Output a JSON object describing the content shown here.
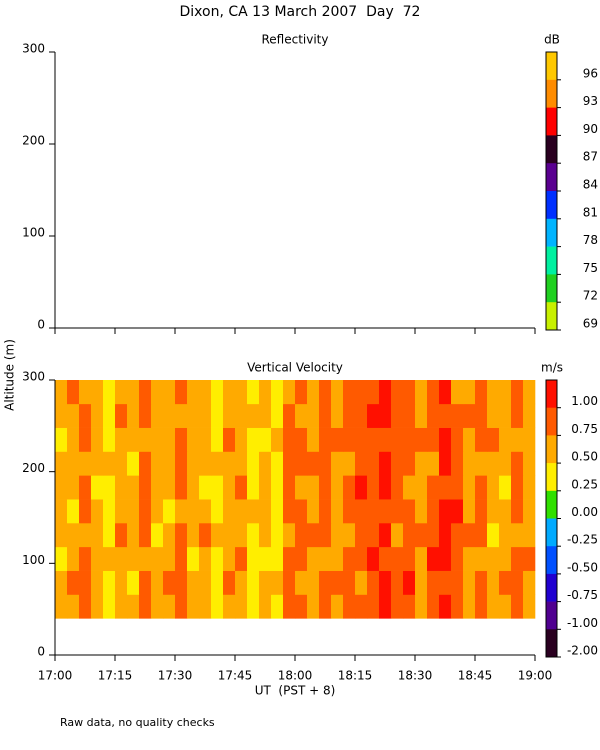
{
  "title": "Dixon, CA 13 March 2007  Day  72",
  "y_label": "Altitude (m)",
  "x_label": "UT  (PST + 8)",
  "note": "Raw data, no quality checks",
  "chart_data": [
    {
      "type": "heatmap",
      "title": "Reflectivity",
      "xlim": [
        17,
        19
      ],
      "xticks": [
        17,
        17.25,
        17.5,
        17.75,
        18,
        18.25,
        18.5,
        18.75,
        19
      ],
      "ylim": [
        0,
        300
      ],
      "yticks": [
        0,
        100,
        200,
        300
      ],
      "colorbar": {
        "unit": "dB",
        "ticks": [
          96,
          93,
          90,
          87,
          84,
          81,
          78,
          75,
          72,
          69
        ],
        "colors": [
          "#ffc800",
          "#ff8c00",
          "#ff0000",
          "#2a0020",
          "#5a0090",
          "#0030ff",
          "#00b4ff",
          "#00f0a0",
          "#20d020",
          "#c8f000"
        ]
      }
    },
    {
      "type": "heatmap",
      "title": "Vertical Velocity",
      "xlim": [
        17,
        19
      ],
      "xticks": [
        {
          "value": 17,
          "label": "17:00"
        },
        {
          "value": 17.25,
          "label": "17:15"
        },
        {
          "value": 17.5,
          "label": "17:30"
        },
        {
          "value": 17.75,
          "label": "17:45"
        },
        {
          "value": 18,
          "label": "18:00"
        },
        {
          "value": 18.25,
          "label": "18:15"
        },
        {
          "value": 18.5,
          "label": "18:30"
        },
        {
          "value": 18.75,
          "label": "18:45"
        },
        {
          "value": 19,
          "label": "19:00"
        }
      ],
      "ylim": [
        0,
        300
      ],
      "yticks": [
        0,
        100,
        200,
        300
      ],
      "colorbar": {
        "unit": "m/s",
        "ticks": [
          {
            "value": 1,
            "label": "1.00"
          },
          {
            "value": 0.75,
            "label": "0.75"
          },
          {
            "value": 0.5,
            "label": "0.50"
          },
          {
            "value": 0.25,
            "label": "0.25"
          },
          {
            "value": 0,
            "label": "0.00"
          },
          {
            "value": -0.25,
            "label": "-0.25"
          },
          {
            "value": -0.5,
            "label": "-0.50"
          },
          {
            "value": -0.75,
            "label": "-0.75"
          },
          {
            "value": -1,
            "label": "-1.00"
          },
          {
            "value": -2,
            "label": "-2.00"
          }
        ],
        "colors": [
          "#ff1000",
          "#ff5a00",
          "#ffaa00",
          "#ffee00",
          "#30e000",
          "#00aaff",
          "#0050ff",
          "#2000d0",
          "#500090",
          "#2a0020"
        ]
      },
      "x_edges": [
        17,
        17.05,
        17.1,
        17.15,
        17.2,
        17.25,
        17.3,
        17.35,
        17.4,
        17.45,
        17.5,
        17.55,
        17.6,
        17.65,
        17.7,
        17.75,
        17.8,
        17.85,
        17.9,
        17.95,
        18,
        18.05,
        18.1,
        18.15,
        18.2,
        18.25,
        18.3,
        18.35,
        18.4,
        18.45,
        18.5,
        18.55,
        18.6,
        18.65,
        18.7,
        18.75,
        18.8,
        18.85,
        18.9,
        18.95,
        19
      ],
      "y_edges": [
        40,
        66,
        92,
        118,
        144,
        170,
        196,
        222,
        248,
        274,
        300
      ],
      "z": [
        [
          0.6,
          0.6,
          0.85,
          0.6,
          0.4,
          0.6,
          0.6,
          0.85,
          0.6,
          0.6,
          0.85,
          0.6,
          0.6,
          0.4,
          0.6,
          0.6,
          0.4,
          0.6,
          0.4,
          0.85,
          0.85,
          0.6,
          0.85,
          0.6,
          0.85,
          0.85,
          0.85,
          1.1,
          0.85,
          0.85,
          0.6,
          0.85,
          1.1,
          0.85,
          0.6,
          0.85,
          0.6,
          0.6,
          0.85,
          0.6
        ],
        [
          0.6,
          0.85,
          0.85,
          0.6,
          0.4,
          0.6,
          0.4,
          0.85,
          0.6,
          0.85,
          0.85,
          0.6,
          0.6,
          0.4,
          0.85,
          0.6,
          0.4,
          0.6,
          0.6,
          0.85,
          0.6,
          0.6,
          0.85,
          0.85,
          0.85,
          0.6,
          0.85,
          1.1,
          0.85,
          1.1,
          0.6,
          0.85,
          0.85,
          0.85,
          0.6,
          0.85,
          0.6,
          0.85,
          0.85,
          0.6
        ],
        [
          0.4,
          0.6,
          0.85,
          0.6,
          0.6,
          0.6,
          0.6,
          0.6,
          0.6,
          0.6,
          0.85,
          0.4,
          0.6,
          0.4,
          0.6,
          0.85,
          0.4,
          0.4,
          0.4,
          0.85,
          0.85,
          0.6,
          0.6,
          0.6,
          0.85,
          0.85,
          1.1,
          0.85,
          0.85,
          0.85,
          0.6,
          1.1,
          1.1,
          0.85,
          0.6,
          0.6,
          0.6,
          0.6,
          0.85,
          0.85
        ],
        [
          0.6,
          0.6,
          0.6,
          0.6,
          0.4,
          0.85,
          0.6,
          0.85,
          0.4,
          0.6,
          0.85,
          0.6,
          0.85,
          0.6,
          0.6,
          0.6,
          0.4,
          0.6,
          0.4,
          0.6,
          0.85,
          0.85,
          0.85,
          0.6,
          0.6,
          0.85,
          0.85,
          1.1,
          0.6,
          0.85,
          0.85,
          0.85,
          1.1,
          0.85,
          0.85,
          0.85,
          0.4,
          0.6,
          0.6,
          0.6
        ],
        [
          0.6,
          0.4,
          0.85,
          0.6,
          0.4,
          0.6,
          0.6,
          0.85,
          0.6,
          0.4,
          0.6,
          0.6,
          0.6,
          0.4,
          0.6,
          0.6,
          0.6,
          0.6,
          0.4,
          0.85,
          0.85,
          0.6,
          0.85,
          0.6,
          0.85,
          0.85,
          0.85,
          0.85,
          0.85,
          0.85,
          0.6,
          0.85,
          1.1,
          1.1,
          0.6,
          0.85,
          0.6,
          0.6,
          0.85,
          0.6
        ],
        [
          0.6,
          0.6,
          0.85,
          0.4,
          0.4,
          0.6,
          0.6,
          0.85,
          0.6,
          0.6,
          0.85,
          0.6,
          0.4,
          0.4,
          0.6,
          0.85,
          0.4,
          0.6,
          0.4,
          0.85,
          0.6,
          0.6,
          0.85,
          0.6,
          0.85,
          1.1,
          0.85,
          1.1,
          0.85,
          0.6,
          0.6,
          0.85,
          0.85,
          0.85,
          0.6,
          0.85,
          0.6,
          0.4,
          0.85,
          0.6
        ],
        [
          0.6,
          0.6,
          0.6,
          0.6,
          0.6,
          0.6,
          0.4,
          0.85,
          0.6,
          0.6,
          0.85,
          0.6,
          0.6,
          0.6,
          0.6,
          0.6,
          0.4,
          0.6,
          0.4,
          0.85,
          0.85,
          0.85,
          0.85,
          0.6,
          0.6,
          0.85,
          0.85,
          1.1,
          0.85,
          0.85,
          0.6,
          0.6,
          1.1,
          0.85,
          0.6,
          0.6,
          0.6,
          0.6,
          0.85,
          0.6
        ],
        [
          0.4,
          0.6,
          0.85,
          0.6,
          0.4,
          0.6,
          0.6,
          0.6,
          0.6,
          0.6,
          0.85,
          0.6,
          0.6,
          0.4,
          0.85,
          0.6,
          0.4,
          0.4,
          0.6,
          0.85,
          0.85,
          0.6,
          0.85,
          0.85,
          0.85,
          0.85,
          0.85,
          0.85,
          0.85,
          0.85,
          0.85,
          0.85,
          1.1,
          0.85,
          0.6,
          0.85,
          0.85,
          0.6,
          0.6,
          0.6
        ],
        [
          0.6,
          0.6,
          0.85,
          0.6,
          0.4,
          0.85,
          0.6,
          0.85,
          0.6,
          0.6,
          0.6,
          0.6,
          0.6,
          0.4,
          0.6,
          0.6,
          0.6,
          0.6,
          0.4,
          0.85,
          0.6,
          0.6,
          0.85,
          0.6,
          0.85,
          0.85,
          1.1,
          1.1,
          0.85,
          0.85,
          0.6,
          0.85,
          0.85,
          0.85,
          0.85,
          0.85,
          0.6,
          0.6,
          0.85,
          0.6
        ],
        [
          0.6,
          0.85,
          0.6,
          0.6,
          0.4,
          0.6,
          0.6,
          0.85,
          0.6,
          0.6,
          0.85,
          0.6,
          0.6,
          0.4,
          0.6,
          0.6,
          0.4,
          0.6,
          0.4,
          0.6,
          0.85,
          0.6,
          0.85,
          0.6,
          0.85,
          0.85,
          0.85,
          1.1,
          0.85,
          0.85,
          0.6,
          0.85,
          1.1,
          0.6,
          0.6,
          0.85,
          0.6,
          0.6,
          0.85,
          0.6
        ]
      ]
    }
  ]
}
